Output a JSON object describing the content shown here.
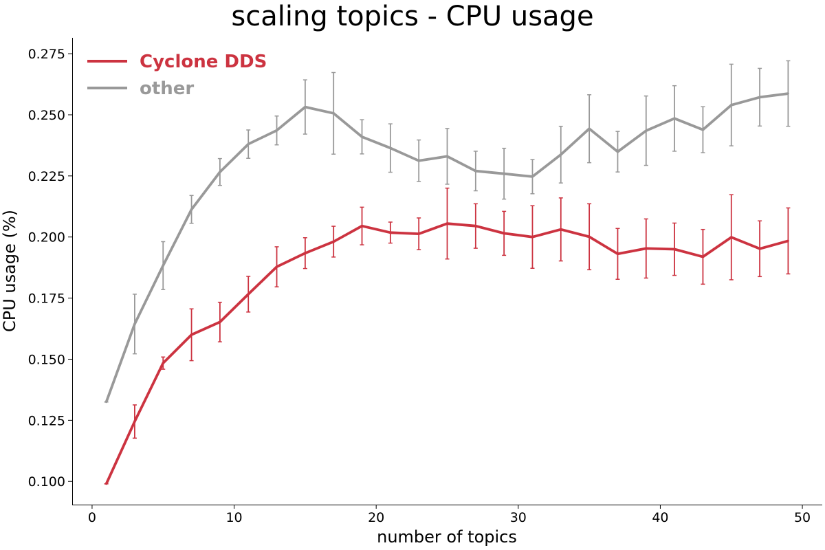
{
  "chart_data": {
    "type": "line",
    "title": "scaling topics - CPU usage",
    "xlabel": "number of topics",
    "ylabel": "CPU usage (%)",
    "xlim": [
      -1.4,
      51.4
    ],
    "ylim": [
      0.0905,
      0.2815
    ],
    "xticks": [
      0,
      10,
      20,
      30,
      40,
      50
    ],
    "xtick_labels": [
      "0",
      "10",
      "20",
      "30",
      "40",
      "50"
    ],
    "yticks": [
      0.1,
      0.125,
      0.15,
      0.175,
      0.2,
      0.225,
      0.25,
      0.275
    ],
    "ytick_labels": [
      "0.100",
      "0.125",
      "0.150",
      "0.175",
      "0.200",
      "0.225",
      "0.250",
      "0.275"
    ],
    "grid": false,
    "legend_position": "top-left",
    "x": [
      1,
      3,
      5,
      7,
      9,
      11,
      13,
      15,
      17,
      19,
      21,
      23,
      25,
      27,
      29,
      31,
      33,
      35,
      37,
      39,
      41,
      43,
      45,
      47,
      49
    ],
    "series": [
      {
        "name": "Cyclone DDS",
        "color": "#cc3340",
        "values": [
          0.099,
          0.1245,
          0.1484,
          0.16,
          0.1652,
          0.1766,
          0.1878,
          0.1934,
          0.1981,
          0.2045,
          0.2018,
          0.2013,
          0.2055,
          0.2045,
          0.2015,
          0.2,
          0.2031,
          0.2001,
          0.1931,
          0.1953,
          0.195,
          0.1919,
          0.1999,
          0.1952,
          0.1984
        ],
        "errors": [
          0.0,
          0.0068,
          0.0025,
          0.0106,
          0.0081,
          0.0073,
          0.0082,
          0.0063,
          0.0063,
          0.0077,
          0.0043,
          0.0065,
          0.0145,
          0.0091,
          0.009,
          0.0128,
          0.0129,
          0.0135,
          0.0104,
          0.0121,
          0.0107,
          0.0112,
          0.0174,
          0.0114,
          0.0135
        ]
      },
      {
        "name": "other",
        "color": "#999999",
        "values": [
          0.1325,
          0.1644,
          0.1883,
          0.2113,
          0.2266,
          0.238,
          0.2436,
          0.2532,
          0.2506,
          0.241,
          0.2364,
          0.2312,
          0.233,
          0.227,
          0.2259,
          0.2247,
          0.2337,
          0.2443,
          0.2349,
          0.2435,
          0.2485,
          0.2439,
          0.254,
          0.2572,
          0.2587
        ],
        "errors": [
          0.0,
          0.0122,
          0.0098,
          0.0057,
          0.0055,
          0.0058,
          0.0059,
          0.0111,
          0.0167,
          0.007,
          0.0099,
          0.0085,
          0.0114,
          0.0081,
          0.0104,
          0.007,
          0.0116,
          0.0139,
          0.0083,
          0.0142,
          0.0134,
          0.0094,
          0.0167,
          0.0118,
          0.0134
        ]
      }
    ]
  }
}
